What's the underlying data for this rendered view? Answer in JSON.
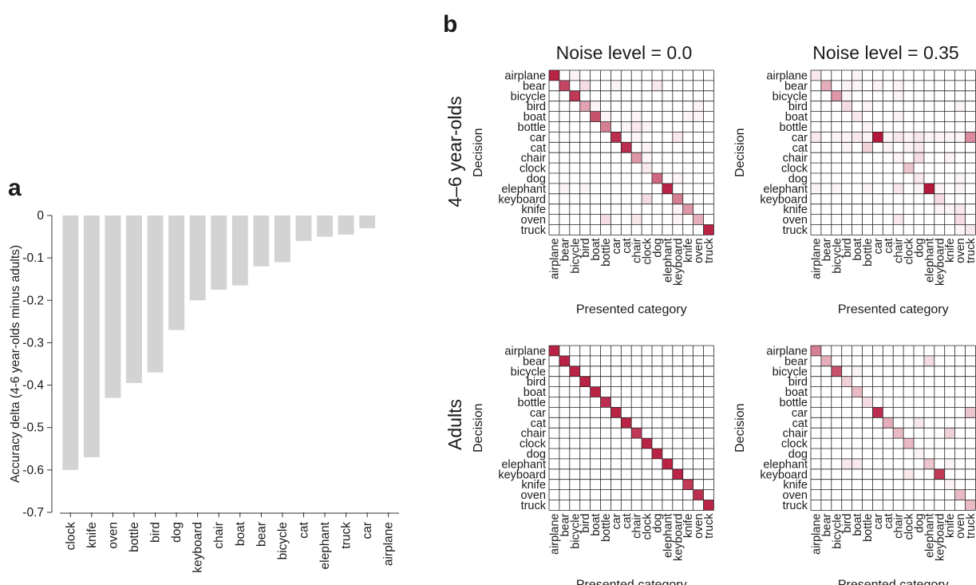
{
  "colors": {
    "bar": "#d3d3d3",
    "cell_max": "#b5173b",
    "cell_min": "#ffffff",
    "grid": "#222222",
    "axis": "#333333",
    "text": "#1a1a1a"
  },
  "panel_a": {
    "letter": "a",
    "chart_data": {
      "type": "bar",
      "title": "",
      "xlabel": "",
      "ylabel": "Accuracy delta (4-6 year-olds minus adults)",
      "ylim": [
        -0.7,
        0
      ],
      "yticks": [
        0,
        -0.1,
        -0.2,
        -0.3,
        -0.4,
        -0.5,
        -0.6,
        -0.7
      ],
      "ytick_labels": [
        "0",
        "-0.1",
        "-0.2",
        "-0.3",
        "-0.4",
        "-0.5",
        "-0.6",
        "-0.7"
      ],
      "categories": [
        "clock",
        "knife",
        "oven",
        "bottle",
        "bird",
        "dog",
        "keyboard",
        "chair",
        "boat",
        "bear",
        "bicycle",
        "cat",
        "elephant",
        "truck",
        "car",
        "airplane"
      ],
      "values": [
        -0.6,
        -0.57,
        -0.43,
        -0.395,
        -0.37,
        -0.27,
        -0.2,
        -0.175,
        -0.165,
        -0.12,
        -0.11,
        -0.06,
        -0.05,
        -0.045,
        -0.03,
        0.0
      ]
    }
  },
  "panel_b": {
    "letter": "b",
    "column_titles": [
      "Noise level = 0.0",
      "Noise level = 0.35"
    ],
    "row_titles": [
      "4–6 year-olds",
      "Adults"
    ],
    "axis_ylabel": "Decision",
    "axis_xlabel": "Presented category",
    "categories": [
      "airplane",
      "bear",
      "bicycle",
      "bird",
      "boat",
      "bottle",
      "car",
      "cat",
      "chair",
      "clock",
      "dog",
      "elephant",
      "keyboard",
      "knife",
      "oven",
      "truck"
    ],
    "chart_data": [
      {
        "type": "heatmap",
        "group": "4–6 year-olds",
        "noise_level": "0.0",
        "z_note": "rows = decision, columns = presented category; values are estimated response proportions",
        "z": [
          [
            0.95,
            0,
            0.05,
            0,
            0,
            0,
            0,
            0,
            0,
            0,
            0,
            0,
            0,
            0,
            0,
            0
          ],
          [
            0,
            0.8,
            0,
            0.15,
            0,
            0,
            0.05,
            0,
            0,
            0,
            0.1,
            0,
            0,
            0,
            0,
            0
          ],
          [
            0,
            0,
            0.85,
            0,
            0,
            0,
            0,
            0,
            0,
            0,
            0,
            0,
            0,
            0,
            0,
            0
          ],
          [
            0,
            0,
            0,
            0.4,
            0.05,
            0,
            0,
            0,
            0,
            0,
            0,
            0,
            0,
            0,
            0.05,
            0
          ],
          [
            0,
            0,
            0,
            0,
            0.75,
            0.05,
            0,
            0,
            0.05,
            0,
            0,
            0,
            0,
            0.05,
            0.05,
            0
          ],
          [
            0,
            0,
            0,
            0,
            0,
            0.55,
            0,
            0.05,
            0.1,
            0.05,
            0,
            0,
            0,
            0,
            0,
            0
          ],
          [
            0,
            0,
            0,
            0,
            0,
            0,
            0.9,
            0,
            0.05,
            0,
            0,
            0,
            0.1,
            0,
            0,
            0
          ],
          [
            0,
            0,
            0,
            0,
            0,
            0,
            0,
            0.9,
            0,
            0.05,
            0,
            0,
            0,
            0,
            0,
            0
          ],
          [
            0,
            0,
            0,
            0,
            0,
            0,
            0,
            0,
            0.45,
            0.05,
            0,
            0,
            0,
            0,
            0,
            0
          ],
          [
            0,
            0,
            0,
            0,
            0,
            0,
            0,
            0,
            0,
            0.1,
            0,
            0,
            0,
            0,
            0,
            0
          ],
          [
            0,
            0,
            0,
            0,
            0,
            0,
            0,
            0,
            0,
            0,
            0.65,
            0,
            0.05,
            0,
            0,
            0
          ],
          [
            0,
            0.05,
            0,
            0.05,
            0,
            0,
            0,
            0,
            0,
            0,
            0,
            0.95,
            0,
            0,
            0,
            0
          ],
          [
            0,
            0,
            0,
            0,
            0,
            0,
            0,
            0,
            0,
            0.15,
            0,
            0,
            0.55,
            0,
            0,
            0
          ],
          [
            0,
            0,
            0,
            0,
            0,
            0,
            0,
            0,
            0,
            0,
            0,
            0,
            0.05,
            0.45,
            0,
            0
          ],
          [
            0,
            0,
            0,
            0,
            0,
            0.15,
            0,
            0,
            0.1,
            0,
            0,
            0,
            0.05,
            0,
            0.35,
            0
          ],
          [
            0,
            0,
            0,
            0,
            0,
            0,
            0,
            0,
            0,
            0,
            0,
            0,
            0,
            0,
            0,
            0.95
          ]
        ]
      },
      {
        "type": "heatmap",
        "group": "4–6 year-olds",
        "noise_level": "0.35",
        "z": [
          [
            0.1,
            0,
            0,
            0,
            0.05,
            0,
            0,
            0,
            0,
            0,
            0,
            0,
            0,
            0,
            0,
            0
          ],
          [
            0,
            0.35,
            0,
            0.05,
            0.05,
            0,
            0.05,
            0,
            0.05,
            0,
            0,
            0,
            0,
            0,
            0,
            0
          ],
          [
            0,
            0,
            0.45,
            0.05,
            0,
            0,
            0,
            0,
            0.05,
            0,
            0,
            0,
            0,
            0,
            0,
            0
          ],
          [
            0,
            0,
            0,
            0.15,
            0,
            0.05,
            0,
            0,
            0,
            0,
            0,
            0,
            0,
            0,
            0.05,
            0
          ],
          [
            0,
            0,
            0,
            0,
            0.1,
            0,
            0,
            0,
            0.05,
            0,
            0,
            0,
            0,
            0,
            0,
            0
          ],
          [
            0,
            0,
            0,
            0,
            0,
            0.05,
            0,
            0,
            0,
            0,
            0,
            0,
            0,
            0,
            0,
            0
          ],
          [
            0.1,
            0,
            0.05,
            0.05,
            0.1,
            0.05,
            1,
            0.05,
            0.1,
            0.05,
            0.1,
            0.05,
            0.05,
            0.05,
            0.05,
            0.5
          ],
          [
            0,
            0,
            0,
            0.05,
            0,
            0.2,
            0,
            0.05,
            0,
            0.05,
            0.1,
            0,
            0,
            0,
            0,
            0
          ],
          [
            0,
            0,
            0,
            0,
            0,
            0,
            0,
            0,
            0.05,
            0,
            0.15,
            0,
            0,
            0.05,
            0,
            0
          ],
          [
            0,
            0,
            0,
            0,
            0,
            0,
            0,
            0,
            0,
            0.25,
            0,
            0,
            0,
            0,
            0,
            0
          ],
          [
            0,
            0,
            0,
            0,
            0,
            0,
            0,
            0,
            0,
            0,
            0.1,
            0,
            0,
            0,
            0.05,
            0
          ],
          [
            0.05,
            0,
            0.05,
            0,
            0,
            0.05,
            0,
            0,
            0.1,
            0,
            0.05,
            1,
            0.05,
            0,
            0.05,
            0
          ],
          [
            0,
            0,
            0,
            0,
            0,
            0,
            0,
            0,
            0,
            0,
            0,
            0,
            0.15,
            0,
            0,
            0
          ],
          [
            0,
            0,
            0,
            0,
            0,
            0,
            0,
            0,
            0,
            0,
            0,
            0,
            0.05,
            0.05,
            0.1,
            0
          ],
          [
            0,
            0,
            0,
            0,
            0,
            0,
            0,
            0,
            0.1,
            0,
            0,
            0,
            0,
            0,
            0.15,
            0
          ],
          [
            0,
            0,
            0,
            0,
            0,
            0,
            0,
            0,
            0,
            0,
            0,
            0,
            0,
            0,
            0.05,
            0.1
          ]
        ]
      },
      {
        "type": "heatmap",
        "group": "Adults",
        "noise_level": "0.0",
        "z": [
          [
            0.95,
            0,
            0,
            0,
            0,
            0,
            0,
            0,
            0,
            0,
            0,
            0,
            0,
            0,
            0,
            0
          ],
          [
            0,
            0.95,
            0,
            0,
            0,
            0,
            0,
            0,
            0,
            0,
            0,
            0,
            0,
            0,
            0,
            0
          ],
          [
            0,
            0,
            0.95,
            0,
            0,
            0,
            0,
            0,
            0,
            0,
            0,
            0,
            0,
            0,
            0,
            0
          ],
          [
            0,
            0,
            0,
            0.95,
            0,
            0,
            0,
            0,
            0,
            0,
            0,
            0,
            0,
            0,
            0,
            0
          ],
          [
            0,
            0,
            0,
            0,
            0.95,
            0,
            0,
            0,
            0,
            0,
            0,
            0,
            0,
            0,
            0,
            0
          ],
          [
            0,
            0,
            0,
            0,
            0,
            0.9,
            0,
            0,
            0,
            0,
            0,
            0,
            0,
            0,
            0,
            0
          ],
          [
            0,
            0,
            0,
            0,
            0,
            0,
            0.95,
            0,
            0,
            0,
            0,
            0,
            0,
            0,
            0,
            0
          ],
          [
            0,
            0,
            0,
            0,
            0,
            0,
            0,
            0.95,
            0,
            0,
            0,
            0,
            0,
            0,
            0,
            0
          ],
          [
            0,
            0,
            0,
            0,
            0,
            0,
            0,
            0,
            0.85,
            0,
            0,
            0,
            0,
            0,
            0,
            0
          ],
          [
            0,
            0,
            0,
            0,
            0,
            0,
            0,
            0,
            0,
            0.95,
            0,
            0,
            0,
            0,
            0,
            0
          ],
          [
            0,
            0,
            0,
            0,
            0,
            0,
            0,
            0,
            0,
            0,
            0.95,
            0,
            0,
            0,
            0,
            0
          ],
          [
            0,
            0,
            0,
            0,
            0,
            0,
            0,
            0,
            0,
            0,
            0,
            0.95,
            0,
            0,
            0,
            0
          ],
          [
            0,
            0,
            0,
            0,
            0,
            0,
            0,
            0,
            0,
            0,
            0,
            0,
            0.95,
            0,
            0,
            0
          ],
          [
            0,
            0,
            0,
            0,
            0,
            0,
            0,
            0,
            0,
            0,
            0,
            0,
            0,
            0.85,
            0,
            0
          ],
          [
            0,
            0,
            0,
            0,
            0,
            0,
            0,
            0,
            0,
            0,
            0,
            0,
            0,
            0,
            0.9,
            0
          ],
          [
            0,
            0,
            0,
            0,
            0,
            0,
            0,
            0,
            0,
            0,
            0,
            0,
            0,
            0,
            0,
            0.95
          ]
        ]
      },
      {
        "type": "heatmap",
        "group": "Adults",
        "noise_level": "0.35",
        "z": [
          [
            0.55,
            0,
            0,
            0,
            0,
            0,
            0,
            0,
            0,
            0,
            0,
            0,
            0,
            0,
            0,
            0
          ],
          [
            0,
            0.35,
            0,
            0,
            0,
            0,
            0,
            0,
            0,
            0,
            0,
            0.15,
            0,
            0,
            0,
            0
          ],
          [
            0,
            0,
            0.75,
            0,
            0.05,
            0,
            0,
            0,
            0,
            0,
            0,
            0,
            0,
            0,
            0,
            0
          ],
          [
            0,
            0,
            0,
            0.2,
            0,
            0,
            0,
            0,
            0,
            0,
            0,
            0,
            0,
            0,
            0,
            0
          ],
          [
            0,
            0,
            0,
            0,
            0.3,
            0,
            0,
            0,
            0,
            0,
            0,
            0,
            0,
            0,
            0,
            0
          ],
          [
            0,
            0,
            0,
            0,
            0,
            0.15,
            0,
            0,
            0,
            0,
            0,
            0,
            0,
            0,
            0,
            0
          ],
          [
            0,
            0,
            0,
            0,
            0,
            0,
            0.9,
            0,
            0,
            0,
            0,
            0,
            0,
            0,
            0,
            0.25
          ],
          [
            0,
            0,
            0,
            0,
            0,
            0,
            0,
            0.35,
            0,
            0,
            0.1,
            0,
            0,
            0,
            0,
            0
          ],
          [
            0,
            0,
            0,
            0,
            0,
            0,
            0,
            0,
            0.3,
            0,
            0,
            0,
            0,
            0.2,
            0,
            0
          ],
          [
            0,
            0,
            0,
            0,
            0,
            0,
            0,
            0,
            0,
            0.3,
            0,
            0,
            0,
            0,
            0,
            0
          ],
          [
            0,
            0,
            0,
            0,
            0,
            0,
            0,
            0,
            0,
            0,
            0.05,
            0,
            0,
            0,
            0,
            0
          ],
          [
            0,
            0,
            0,
            0.1,
            0.1,
            0,
            0,
            0,
            0,
            0,
            0,
            0.25,
            0,
            0.05,
            0,
            0
          ],
          [
            0,
            0,
            0,
            0,
            0,
            0,
            0,
            0,
            0,
            0.1,
            0,
            0,
            0.85,
            0,
            0,
            0
          ],
          [
            0,
            0,
            0,
            0,
            0,
            0,
            0,
            0,
            0,
            0,
            0,
            0,
            0,
            0.05,
            0,
            0
          ],
          [
            0,
            0,
            0,
            0,
            0,
            0,
            0,
            0,
            0,
            0,
            0,
            0,
            0,
            0,
            0.3,
            0
          ],
          [
            0,
            0,
            0,
            0,
            0,
            0,
            0,
            0,
            0,
            0,
            0,
            0,
            0,
            0,
            0,
            0.3
          ]
        ]
      }
    ]
  }
}
